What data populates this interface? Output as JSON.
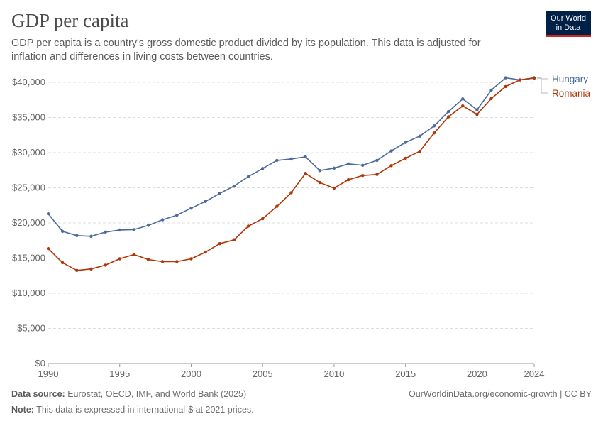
{
  "header": {
    "title": "GDP per capita",
    "subtitle": "GDP per capita is a country's gross domestic product divided by its population. This data is adjusted for inflation and differences in living costs between countries."
  },
  "logo": {
    "line1": "Our World",
    "line2": "in Data"
  },
  "footer": {
    "source_label": "Data source:",
    "source_text": "Eurostat, OECD, IMF, and World Bank (2025)",
    "url": "OurWorldinData.org/economic-growth | CC BY",
    "note_label": "Note:",
    "note_text": "This data is expressed in international-$ at 2021 prices."
  },
  "colors": {
    "hungary": "#4c6a9c",
    "romania": "#b13507",
    "grid": "#dddddd",
    "axis": "#666666"
  },
  "chart_data": {
    "type": "line",
    "title": "GDP per capita",
    "xlim": [
      1990,
      2024
    ],
    "ylim": [
      0,
      40000
    ],
    "y_ticks": [
      0,
      5000,
      10000,
      15000,
      20000,
      25000,
      30000,
      35000,
      40000
    ],
    "y_tick_labels": [
      "$0",
      "$5,000",
      "$10,000",
      "$15,000",
      "$20,000",
      "$25,000",
      "$30,000",
      "$35,000",
      "$40,000"
    ],
    "x_ticks": [
      1990,
      1995,
      2000,
      2005,
      2010,
      2015,
      2020,
      2024
    ],
    "x_tick_labels": [
      "1990",
      "1995",
      "2000",
      "2005",
      "2010",
      "2015",
      "2020",
      "2024"
    ],
    "grid": true,
    "legend": "right",
    "x": [
      1990,
      1991,
      1992,
      1993,
      1994,
      1995,
      1996,
      1997,
      1998,
      1999,
      2000,
      2001,
      2002,
      2003,
      2004,
      2005,
      2006,
      2007,
      2008,
      2009,
      2010,
      2011,
      2012,
      2013,
      2014,
      2015,
      2016,
      2017,
      2018,
      2019,
      2020,
      2021,
      2022,
      2023,
      2024
    ],
    "series": [
      {
        "name": "Hungary",
        "values": [
          21300,
          18800,
          18200,
          18100,
          18700,
          19000,
          19050,
          19650,
          20450,
          21100,
          22100,
          23050,
          24200,
          25250,
          26600,
          27750,
          28900,
          29100,
          29400,
          27450,
          27800,
          28400,
          28200,
          28900,
          30250,
          31450,
          32350,
          33800,
          35850,
          37650,
          36100,
          38900,
          40650,
          40350,
          40600
        ]
      },
      {
        "name": "Romania",
        "values": [
          16350,
          14350,
          13250,
          13450,
          14000,
          14900,
          15500,
          14800,
          14500,
          14500,
          14900,
          15850,
          17050,
          17600,
          19550,
          20600,
          22350,
          24300,
          27050,
          25750,
          24950,
          26150,
          26750,
          26900,
          28150,
          29200,
          30200,
          32800,
          35100,
          36650,
          35450,
          37700,
          39400,
          40350,
          40650
        ]
      }
    ]
  }
}
